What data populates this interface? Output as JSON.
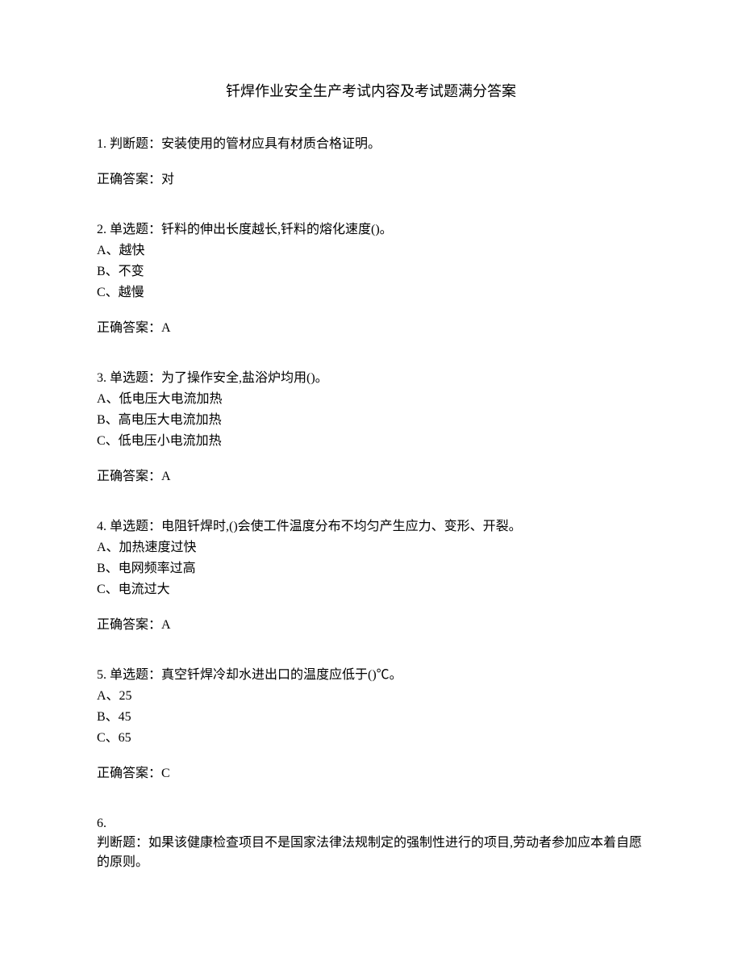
{
  "title": "钎焊作业安全生产考试内容及考试题满分答案",
  "questions": [
    {
      "number": "1.",
      "type": "判断题：",
      "text": "安装使用的管材应具有材质合格证明。",
      "options": [],
      "answerLabel": "正确答案：",
      "answer": "对"
    },
    {
      "number": "2.",
      "type": "单选题：",
      "text": "钎料的伸出长度越长,钎料的熔化速度()。",
      "options": [
        "A、越快",
        "B、不变",
        "C、越慢"
      ],
      "answerLabel": "正确答案：",
      "answer": "A"
    },
    {
      "number": "3.",
      "type": "单选题：",
      "text": "为了操作安全,盐浴炉均用()。",
      "options": [
        "A、低电压大电流加热",
        "B、高电压大电流加热",
        "C、低电压小电流加热"
      ],
      "answerLabel": "正确答案：",
      "answer": "A"
    },
    {
      "number": "4.",
      "type": "单选题：",
      "text": "电阻钎焊时,()会使工件温度分布不均匀产生应力、变形、开裂。",
      "options": [
        "A、加热速度过快",
        "B、电网频率过高",
        "C、电流过大"
      ],
      "answerLabel": "正确答案：",
      "answer": "A"
    },
    {
      "number": "5.",
      "type": "单选题：",
      "text": "真空钎焊冷却水进出口的温度应低于()℃。",
      "options": [
        "A、25",
        "B、45",
        "C、65"
      ],
      "answerLabel": "正确答案：",
      "answer": "C"
    },
    {
      "number": "6.",
      "type": "判断题：",
      "text": "如果该健康检查项目不是国家法律法规制定的强制性进行的项目,劳动者参加应本着自愿的原则。",
      "options": [],
      "answerLabel": "",
      "answer": ""
    }
  ]
}
